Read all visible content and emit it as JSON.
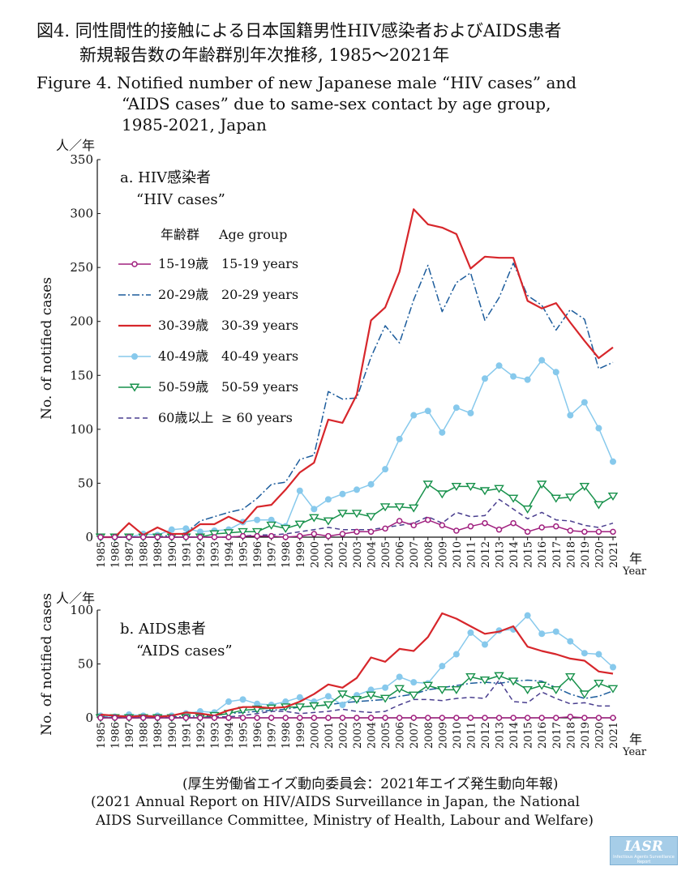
{
  "titles": {
    "jp_line1": "図4. 同性間性的接触による日本国籍男性HIV感染者およびAIDS患者",
    "jp_line2": "新規報告数の年齢群別年次推移, 1985～2021年",
    "en_line1": "Figure 4. Notified number of new Japanese male “HIV cases” and",
    "en_line2": "“AIDS cases” due to same-sex contact by age group,",
    "en_line3": "1985-2021, Japan"
  },
  "source": {
    "jp": "(厚生労働省エイズ動向委員会：2021年エイズ発生動向年報)",
    "en_line1": "(2021 Annual Report on HIV/AIDS Surveillance in Japan, the National",
    "en_line2": "AIDS Surveillance Committee, Ministry of Health, Labour and Welfare)"
  },
  "logo": {
    "text": "IASR",
    "subtitle": "Infectious Agents Surveillance Report"
  },
  "legend": {
    "title_jp": "年齢群",
    "title_en": "Age group",
    "entries": [
      {
        "jp": "15-19歳",
        "en": "15-19 years",
        "color": "#a0207f",
        "marker": "circle-open",
        "dash": "solid"
      },
      {
        "jp": "20-29歳",
        "en": "20-29 years",
        "color": "#1c5c9c",
        "marker": "none",
        "dash": "dashdot"
      },
      {
        "jp": "30-39歳",
        "en": "30-39 years",
        "color": "#d7262b",
        "marker": "none",
        "dash": "solid"
      },
      {
        "jp": "40-49歳",
        "en": "40-49 years",
        "color": "#87c9ec",
        "marker": "circle-filled",
        "dash": "solid"
      },
      {
        "jp": "50-59歳",
        "en": "50-59 years",
        "color": "#17914b",
        "marker": "triangle-open",
        "dash": "solid"
      },
      {
        "jp": "60歳以上",
        "en": "≥ 60 years",
        "color": "#4a3f8f",
        "marker": "none",
        "dash": "dashed"
      }
    ]
  },
  "chart_data": [
    {
      "type": "line",
      "panel_title": "a. HIV感染者",
      "panel_subtitle": "“HIV cases”",
      "ylabel": "No. of notified cases",
      "y_unit": "人／年",
      "x_unit_jp": "年",
      "x_unit_en": "Year",
      "ylim": [
        0,
        350
      ],
      "yticks": [
        0,
        50,
        100,
        150,
        200,
        250,
        300,
        350
      ],
      "x": [
        1985,
        1986,
        1987,
        1988,
        1989,
        1990,
        1991,
        1992,
        1993,
        1994,
        1995,
        1996,
        1997,
        1998,
        1999,
        2000,
        2001,
        2002,
        2003,
        2004,
        2005,
        2006,
        2007,
        2008,
        2009,
        2010,
        2011,
        2012,
        2013,
        2014,
        2015,
        2016,
        2017,
        2018,
        2019,
        2020,
        2021
      ],
      "series": [
        {
          "name": "15-19 years",
          "values": [
            0,
            0,
            0,
            0,
            0,
            0,
            0,
            0,
            0,
            0,
            1,
            1,
            1,
            0,
            1,
            3,
            1,
            3,
            5,
            5,
            8,
            15,
            11,
            16,
            11,
            6,
            10,
            13,
            7,
            13,
            5,
            9,
            10,
            6,
            5,
            5,
            5
          ]
        },
        {
          "name": "20-29 years",
          "values": [
            0,
            0,
            0,
            0,
            0,
            2,
            4,
            15,
            19,
            23,
            26,
            36,
            49,
            51,
            72,
            76,
            135,
            128,
            129,
            167,
            196,
            180,
            220,
            252,
            209,
            236,
            245,
            201,
            222,
            254,
            224,
            215,
            192,
            211,
            202,
            156,
            162
          ]
        },
        {
          "name": "30-39 years",
          "values": [
            0,
            0,
            13,
            2,
            9,
            3,
            3,
            12,
            12,
            19,
            13,
            28,
            30,
            44,
            60,
            69,
            109,
            106,
            132,
            201,
            213,
            246,
            304,
            290,
            287,
            281,
            249,
            260,
            259,
            259,
            219,
            212,
            217,
            199,
            182,
            166,
            176
          ]
        },
        {
          "name": "40-49 years",
          "values": [
            0,
            0,
            0,
            3,
            2,
            7,
            8,
            5,
            6,
            7,
            14,
            16,
            16,
            10,
            43,
            26,
            35,
            40,
            44,
            49,
            63,
            91,
            113,
            117,
            97,
            120,
            115,
            147,
            159,
            149,
            146,
            164,
            153,
            113,
            125,
            101,
            70
          ]
        },
        {
          "name": "50-59 years",
          "values": [
            0,
            0,
            0,
            0,
            0,
            0,
            0,
            0,
            3,
            4,
            5,
            5,
            11,
            8,
            12,
            18,
            15,
            22,
            22,
            19,
            28,
            28,
            27,
            49,
            40,
            47,
            47,
            43,
            45,
            36,
            26,
            49,
            36,
            37,
            47,
            30,
            38
          ]
        },
        {
          "name": "≥ 60 years",
          "values": [
            0,
            0,
            0,
            0,
            0,
            0,
            0,
            0,
            0,
            0,
            1,
            2,
            2,
            3,
            5,
            7,
            9,
            7,
            7,
            7,
            9,
            11,
            13,
            19,
            13,
            23,
            19,
            20,
            35,
            26,
            17,
            23,
            16,
            15,
            11,
            9,
            13
          ]
        }
      ]
    },
    {
      "type": "line",
      "panel_title": "b. AIDS患者",
      "panel_subtitle": "“AIDS cases”",
      "ylabel": "No. of notified cases",
      "y_unit": "人／年",
      "x_unit_jp": "年",
      "x_unit_en": "Year",
      "ylim": [
        0,
        100
      ],
      "yticks": [
        0,
        50,
        100
      ],
      "x": [
        1985,
        1986,
        1987,
        1988,
        1989,
        1990,
        1991,
        1992,
        1993,
        1994,
        1995,
        1996,
        1997,
        1998,
        1999,
        2000,
        2001,
        2002,
        2003,
        2004,
        2005,
        2006,
        2007,
        2008,
        2009,
        2010,
        2011,
        2012,
        2013,
        2014,
        2015,
        2016,
        2017,
        2018,
        2019,
        2020,
        2021
      ],
      "series": [
        {
          "name": "15-19 years",
          "values": [
            0,
            0,
            0,
            0,
            0,
            0,
            0,
            0,
            0,
            0,
            0,
            0,
            0,
            0,
            0,
            0,
            0,
            0,
            0,
            0,
            0,
            0,
            0,
            0,
            0,
            0,
            0,
            0,
            0,
            0,
            0,
            0,
            0,
            1,
            0,
            0,
            0
          ]
        },
        {
          "name": "20-29 years",
          "values": [
            1,
            1,
            1,
            1,
            1,
            1,
            1,
            2,
            2,
            4,
            5,
            6,
            7,
            8,
            10,
            11,
            12,
            14,
            15,
            16,
            17,
            20,
            22,
            26,
            28,
            30,
            32,
            33,
            32,
            34,
            35,
            34,
            28,
            22,
            18,
            20,
            25
          ]
        },
        {
          "name": "30-39 years",
          "values": [
            3,
            2,
            1,
            2,
            1,
            2,
            5,
            4,
            2,
            7,
            10,
            10,
            9,
            10,
            15,
            22,
            31,
            28,
            37,
            56,
            52,
            64,
            62,
            75,
            97,
            92,
            85,
            78,
            80,
            85,
            66,
            62,
            59,
            55,
            53,
            43,
            41
          ]
        },
        {
          "name": "40-49 years",
          "values": [
            2,
            1,
            3,
            2,
            2,
            2,
            4,
            6,
            5,
            15,
            17,
            13,
            12,
            15,
            19,
            15,
            20,
            12,
            21,
            26,
            28,
            38,
            33,
            32,
            48,
            59,
            79,
            68,
            81,
            82,
            95,
            78,
            80,
            71,
            60,
            59,
            47
          ]
        },
        {
          "name": "50-59 years",
          "values": [
            0,
            0,
            0,
            0,
            0,
            0,
            0,
            0,
            2,
            4,
            7,
            8,
            9,
            10,
            10,
            11,
            12,
            22,
            17,
            21,
            18,
            27,
            21,
            30,
            26,
            26,
            38,
            35,
            39,
            34,
            26,
            30,
            26,
            38,
            22,
            32,
            27
          ]
        },
        {
          "name": "≥ 60 years",
          "values": [
            0,
            0,
            0,
            0,
            0,
            0,
            0,
            0,
            1,
            1,
            2,
            4,
            6,
            6,
            4,
            5,
            6,
            8,
            6,
            5,
            6,
            12,
            17,
            17,
            16,
            18,
            19,
            18,
            35,
            15,
            14,
            24,
            18,
            13,
            14,
            11,
            11
          ]
        }
      ]
    }
  ]
}
